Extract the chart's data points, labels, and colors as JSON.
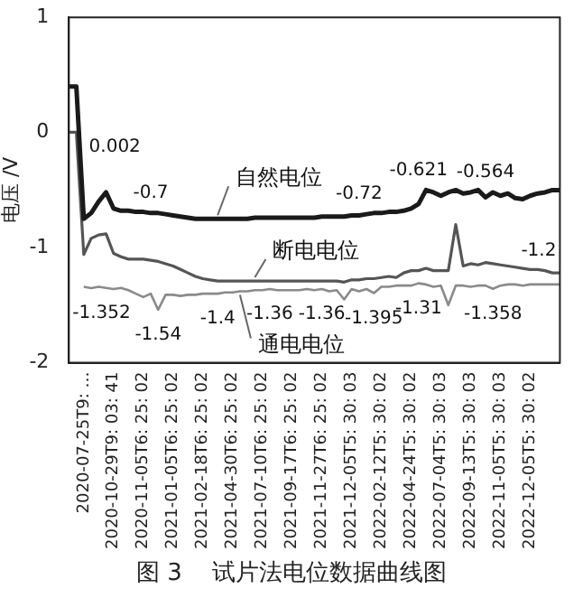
{
  "chart_data": {
    "type": "line",
    "title": "图 3    试片法电位数据曲线图",
    "ylabel": "电压 /V",
    "ylim": [
      -2,
      1
    ],
    "yticks": [
      -2,
      -1,
      0,
      1
    ],
    "grid": false,
    "legend": false,
    "marker": "none",
    "line_style": "solid",
    "categories": [
      null,
      null,
      "2020-07-25T9: …",
      null,
      null,
      null,
      "2020-10-29T9: 03: 41",
      null,
      null,
      null,
      "2020-11-05T6: 25: 02",
      null,
      null,
      null,
      "2021-01-05T6: 25: 02",
      null,
      null,
      null,
      "2021-02-18T6: 25: 02",
      null,
      null,
      null,
      "2021-04-30T6: 25: 02",
      null,
      null,
      null,
      "2021-07-10T6: 25: 02",
      null,
      null,
      null,
      "2021-09-17T6: 25: 02",
      null,
      null,
      null,
      "2021-11-27T6: 25: 02",
      null,
      null,
      null,
      "2021-12-05T5: 30: 03",
      null,
      null,
      null,
      "2022-02-12T5: 30: 02",
      null,
      null,
      null,
      "2022-04-24T5: 30: 02",
      null,
      null,
      null,
      "2022-07-04T5: 30: 03",
      null,
      null,
      null,
      "2022-09-13T5: 30: 03",
      null,
      null,
      null,
      "2022-11-05T5: 30: 03",
      null,
      null,
      null,
      "2022-12-05T5: 30: 02",
      null,
      null,
      null,
      null
    ],
    "series": [
      {
        "name": "自然电位",
        "color": "#1a1a1a",
        "values": [
          0.4,
          0.4,
          -0.75,
          -0.7,
          -0.6,
          -0.52,
          -0.66,
          -0.68,
          -0.68,
          -0.69,
          -0.69,
          -0.7,
          -0.7,
          -0.71,
          -0.72,
          -0.73,
          -0.74,
          -0.75,
          -0.75,
          -0.75,
          -0.75,
          -0.75,
          -0.75,
          -0.75,
          -0.75,
          -0.74,
          -0.74,
          -0.74,
          -0.74,
          -0.74,
          -0.74,
          -0.74,
          -0.74,
          -0.74,
          -0.73,
          -0.73,
          -0.73,
          -0.73,
          -0.72,
          -0.72,
          -0.71,
          -0.7,
          -0.7,
          -0.69,
          -0.69,
          -0.68,
          -0.66,
          -0.621,
          -0.5,
          -0.52,
          -0.55,
          -0.52,
          -0.5,
          -0.53,
          -0.52,
          -0.5,
          -0.564,
          -0.52,
          -0.55,
          -0.53,
          -0.57,
          -0.58,
          -0.55,
          -0.53,
          -0.52,
          -0.5,
          -0.5
        ],
        "value_labels": [
          null,
          null,
          null,
          null,
          null,
          null,
          null,
          null,
          null,
          null,
          null,
          "-0.7",
          null,
          null,
          null,
          null,
          null,
          null,
          null,
          null,
          null,
          null,
          null,
          null,
          null,
          null,
          null,
          null,
          null,
          null,
          null,
          null,
          null,
          null,
          null,
          null,
          null,
          null,
          null,
          "-0.72",
          null,
          null,
          null,
          null,
          null,
          null,
          null,
          "-0.621",
          null,
          null,
          null,
          null,
          null,
          null,
          null,
          null,
          "-0.564",
          null,
          null,
          null,
          null,
          null,
          null,
          null,
          null,
          null,
          null
        ]
      },
      {
        "name": "断电电位",
        "color": "#555555",
        "values": [
          0.002,
          0.002,
          -1.06,
          -0.92,
          -0.89,
          -0.88,
          -1.05,
          -1.08,
          -1.1,
          -1.1,
          -1.1,
          -1.11,
          -1.12,
          -1.14,
          -1.16,
          -1.19,
          -1.22,
          -1.25,
          -1.27,
          -1.28,
          -1.29,
          -1.29,
          -1.29,
          -1.29,
          -1.29,
          -1.29,
          -1.29,
          -1.29,
          -1.29,
          -1.29,
          -1.29,
          -1.29,
          -1.29,
          -1.29,
          -1.29,
          -1.29,
          -1.29,
          -1.3,
          -1.28,
          -1.28,
          -1.27,
          -1.27,
          -1.26,
          -1.25,
          -1.26,
          -1.22,
          -1.2,
          -1.2,
          -1.18,
          -1.2,
          -1.2,
          -1.2,
          -0.8,
          -1.16,
          -1.14,
          -1.15,
          -1.13,
          -1.14,
          -1.15,
          -1.16,
          -1.17,
          -1.18,
          -1.19,
          -1.19,
          -1.2,
          -1.22,
          -1.22
        ],
        "value_labels": [
          null,
          "0.002",
          null,
          null,
          null,
          null,
          null,
          null,
          null,
          null,
          null,
          null,
          null,
          null,
          null,
          null,
          null,
          null,
          null,
          null,
          null,
          null,
          null,
          null,
          null,
          null,
          null,
          null,
          null,
          null,
          null,
          null,
          null,
          null,
          null,
          null,
          null,
          null,
          null,
          null,
          null,
          null,
          null,
          null,
          null,
          null,
          null,
          null,
          null,
          null,
          null,
          null,
          null,
          null,
          null,
          null,
          null,
          null,
          null,
          null,
          null,
          null,
          null,
          null,
          "-1.2",
          null,
          null
        ]
      },
      {
        "name": "通电电位",
        "color": "#8a8a8a",
        "values": [
          null,
          null,
          -1.34,
          -1.352,
          -1.34,
          -1.35,
          -1.36,
          -1.35,
          -1.37,
          -1.4,
          -1.43,
          -1.4,
          -1.54,
          -1.41,
          -1.41,
          -1.42,
          -1.41,
          -1.41,
          -1.4,
          -1.4,
          -1.4,
          -1.39,
          -1.39,
          -1.38,
          -1.38,
          -1.37,
          -1.37,
          -1.36,
          -1.37,
          -1.37,
          -1.37,
          -1.37,
          -1.36,
          -1.37,
          -1.36,
          -1.38,
          -1.37,
          -1.45,
          -1.36,
          -1.38,
          -1.36,
          -1.395,
          -1.34,
          -1.34,
          -1.33,
          -1.33,
          -1.33,
          -1.31,
          -1.32,
          -1.34,
          -1.33,
          -1.5,
          -1.33,
          -1.33,
          -1.34,
          -1.33,
          -1.33,
          -1.358,
          -1.33,
          -1.32,
          -1.32,
          -1.33,
          -1.32,
          -1.32,
          -1.32,
          -1.32,
          -1.32
        ],
        "value_labels": [
          null,
          null,
          null,
          "-1.352",
          null,
          null,
          null,
          null,
          null,
          null,
          null,
          null,
          "-1.54",
          null,
          null,
          null,
          null,
          null,
          null,
          null,
          "-1.4",
          null,
          null,
          null,
          null,
          null,
          null,
          "-1.36",
          null,
          null,
          null,
          null,
          null,
          null,
          "-1.36",
          null,
          null,
          null,
          null,
          null,
          null,
          "-1.395",
          null,
          null,
          null,
          null,
          null,
          "-1.31",
          null,
          null,
          null,
          null,
          null,
          null,
          null,
          null,
          null,
          "-1.358",
          null,
          null,
          null,
          null,
          null,
          null,
          null,
          null,
          null
        ]
      }
    ]
  }
}
